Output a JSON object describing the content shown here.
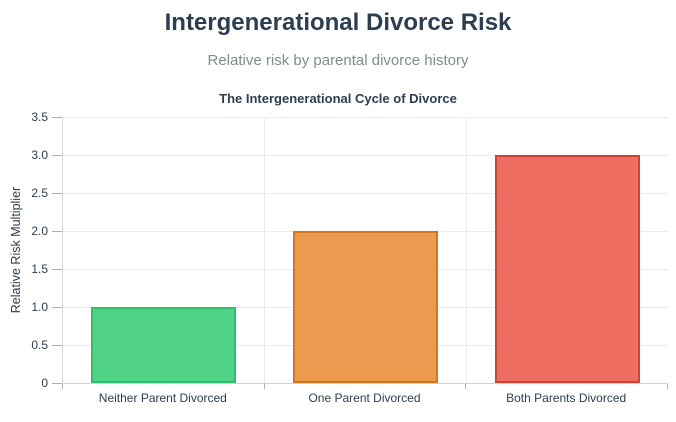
{
  "page": {
    "title": "Intergenerational Divorce Risk",
    "subtitle": "Relative risk by parental divorce history"
  },
  "chart_data": {
    "type": "bar",
    "title": "The Intergenerational Cycle of Divorce",
    "categories": [
      "Neither Parent Divorced",
      "One Parent Divorced",
      "Both Parents Divorced"
    ],
    "values": [
      1.0,
      2.0,
      3.0
    ],
    "xlabel": "",
    "ylabel": "Relative Risk Multiplier",
    "ylim": [
      0,
      3.5
    ],
    "ytick_labels": [
      "0",
      "0.5",
      "1.0",
      "1.5",
      "2.0",
      "2.5",
      "3.0",
      "3.5"
    ],
    "grid": true,
    "legend_position": "none",
    "bar_fill_colors": [
      "#50d287",
      "#eb9a4f",
      "#ed6d60"
    ],
    "bar_border_colors": [
      "#2dbd6e",
      "#d9731f",
      "#cf4335"
    ]
  },
  "theme": {
    "title_color": "#2c3e50",
    "subtitle_color": "#7f8c8d",
    "axis_text_color": "#2c3e50",
    "grid_color": "#e9ebee",
    "axis_line_color": "#cfd5da",
    "tick_color": "#a9b2ba",
    "background": "#ffffff"
  }
}
